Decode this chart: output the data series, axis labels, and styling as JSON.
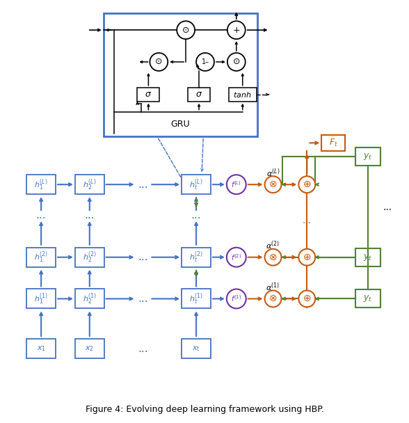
{
  "title": "Figure 4: Evolving deep learning framework using HBP.",
  "blue_color": "#4472C4",
  "orange_color": "#C55A11",
  "green_color": "#538135",
  "purple_color": "#7030A0",
  "black_color": "#000000",
  "bg_color": "#FFFFFF",
  "figw": 5.88,
  "figh": 6.08,
  "dpi": 100
}
